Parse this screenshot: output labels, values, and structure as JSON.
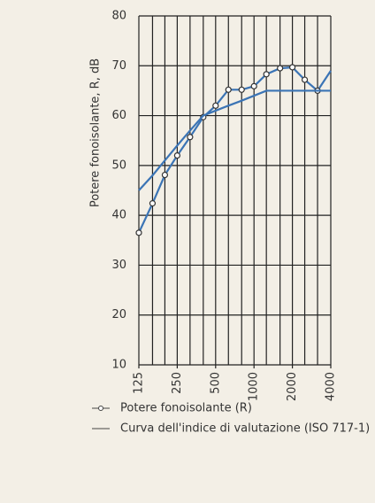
{
  "chart_data": {
    "type": "line",
    "y_label": "Potere fonoisolante, R, dB",
    "x": [
      125,
      160,
      200,
      250,
      315,
      400,
      500,
      630,
      800,
      1000,
      1250,
      1600,
      2000,
      2500,
      3150,
      4000
    ],
    "series": [
      {
        "name": "Potere fonoisolante (R)",
        "color": "#3b74b5",
        "markers": true,
        "values": [
          36.5,
          42.4,
          48.1,
          52,
          55.7,
          59.7,
          62,
          65.2,
          65.2,
          65.9,
          68.3,
          69.5,
          69.7,
          67.2,
          65,
          69
        ]
      },
      {
        "name": "Curva dell'indice di valutazione (ISO 717-1)",
        "color": "#3b74b5",
        "markers": false,
        "values": [
          45,
          48,
          51,
          54,
          57,
          60,
          61,
          62,
          63,
          64,
          65,
          65,
          65,
          65,
          65,
          65
        ]
      }
    ],
    "xlim": [
      125,
      4000
    ],
    "xticks": [
      125,
      250,
      500,
      1000,
      2000,
      4000
    ],
    "xlog": true,
    "ylim": [
      10,
      80
    ],
    "yticks": [
      10,
      20,
      30,
      40,
      50,
      60,
      70,
      80
    ],
    "grid": true
  }
}
